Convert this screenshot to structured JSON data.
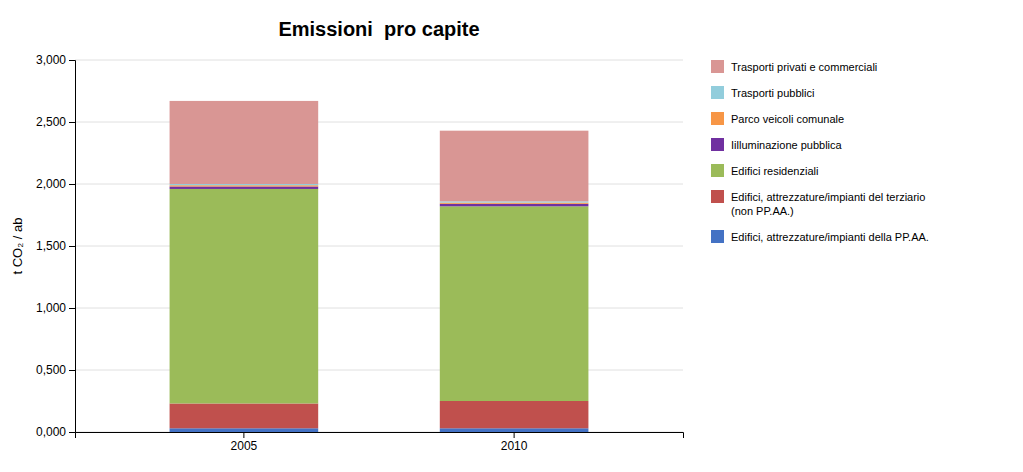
{
  "chart_data": {
    "type": "bar",
    "title": "Emissioni  pro capite",
    "ylabel": "t CO₂ / ab",
    "categories": [
      "2005",
      "2010"
    ],
    "stacked": true,
    "grid": true,
    "legend": "right",
    "ylim": [
      0,
      3.0
    ],
    "yticks": [
      {
        "value": 0.0,
        "label": "0,000"
      },
      {
        "value": 0.5,
        "label": "0,500"
      },
      {
        "value": 1.0,
        "label": "1,000"
      },
      {
        "value": 1.5,
        "label": "1,500"
      },
      {
        "value": 2.0,
        "label": "2,000"
      },
      {
        "value": 2.5,
        "label": "2,500"
      },
      {
        "value": 3.0,
        "label": "3,000"
      }
    ],
    "series": [
      {
        "name": "Edifici, attrezzature/impianti della PP.AA.",
        "color": "#4472C4",
        "values": [
          0.03,
          0.03
        ]
      },
      {
        "name": "Edifici, attrezzature/impianti del terziario\n(non PP.AA.)",
        "color": "#C0504D",
        "values": [
          0.2,
          0.22
        ]
      },
      {
        "name": "Edifici residenziali",
        "color": "#9BBB59",
        "values": [
          1.73,
          1.57
        ]
      },
      {
        "name": "Iilluminazione pubblica",
        "color": "#7030A0",
        "values": [
          0.02,
          0.02
        ]
      },
      {
        "name": "Parco veicoli comunale",
        "color": "#F79646",
        "values": [
          0.01,
          0.01
        ]
      },
      {
        "name": "Trasporti pubblici",
        "color": "#92CDDC",
        "values": [
          0.01,
          0.01
        ]
      },
      {
        "name": "Trasporti privati e commerciali",
        "color": "#D99694",
        "values": [
          0.67,
          0.57
        ]
      }
    ]
  }
}
